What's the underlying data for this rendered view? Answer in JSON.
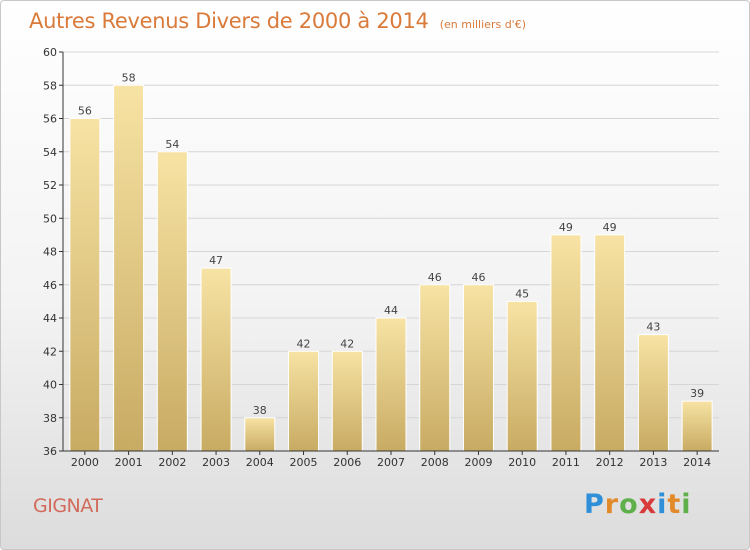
{
  "title": "Autres Revenus Divers de 2000 à 2014",
  "subtitle": "(en milliers d'€)",
  "commune": "GIGNAT",
  "logo": {
    "letters": [
      "P",
      "r",
      "o",
      "x",
      "i",
      "t",
      "i"
    ],
    "colors": [
      "#2f8fd8",
      "#e28a2a",
      "#5fb04a",
      "#d83a3a",
      "#2f8fd8",
      "#e28a2a",
      "#5fb04a"
    ]
  },
  "colors": {
    "title": "#d97a3a",
    "bar_light": "#f7e3a4",
    "bar_dark": "#c8ab63",
    "grid": "#d6d6d6",
    "axis": "#333333"
  },
  "chart_data": {
    "type": "bar",
    "categories": [
      "2000",
      "2001",
      "2002",
      "2003",
      "2004",
      "2005",
      "2006",
      "2007",
      "2008",
      "2009",
      "2010",
      "2011",
      "2012",
      "2013",
      "2014"
    ],
    "values": [
      56,
      58,
      54,
      47,
      38,
      42,
      42,
      44,
      46,
      46,
      45,
      49,
      49,
      43,
      39
    ],
    "ylim": [
      36,
      60
    ],
    "yticks": [
      36,
      38,
      40,
      42,
      44,
      46,
      48,
      50,
      52,
      54,
      56,
      58,
      60
    ],
    "grid": true,
    "data_labels": true
  }
}
